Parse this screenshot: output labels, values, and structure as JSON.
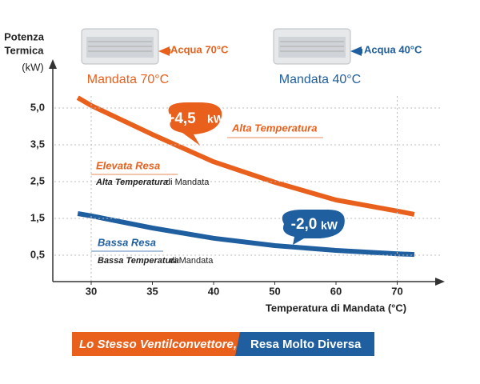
{
  "chart_data": {
    "type": "line",
    "y_label_line1": "Potenza",
    "y_label_line2": "Termica",
    "y_unit": "(kW)",
    "x_label": "Temperatura di Mandata (°C)",
    "x": [
      28.9,
      30,
      35,
      40,
      50,
      60,
      70,
      72.8
    ],
    "series": [
      {
        "name": "Mandata 70°C",
        "color": "#e8601c",
        "values": [
          5.42,
          5.1,
          3.92,
          3.04,
          2.48,
          2.0,
          1.7,
          1.61
        ]
      },
      {
        "name": "Mandata 40°C",
        "color": "#1f5fa0",
        "values": [
          1.63,
          1.57,
          1.24,
          0.96,
          0.76,
          0.63,
          0.54,
          0.52
        ]
      }
    ],
    "xlim": [
      27,
      77
    ],
    "xticks": [
      30,
      35,
      40,
      50,
      60,
      70
    ],
    "ylim": [
      -0.2,
      6.8
    ],
    "yticks": [
      {
        "value": 0.5,
        "label": "0,5"
      },
      {
        "value": 1.5,
        "label": "1,5"
      },
      {
        "value": 2.5,
        "label": "2,5"
      },
      {
        "value": 3.5,
        "label": "3,5"
      },
      {
        "value": 5.0,
        "label": "5,0"
      }
    ],
    "grid": true,
    "annotations": {
      "water_hot": "Acqua 70°C",
      "water_cold": "Acqua 40°C",
      "diff_high_value": "+4,5",
      "diff_low_value": "-2,0",
      "diff_unit": "kW",
      "high_label": "Alta Temperatura",
      "high_yield": "Elevata Resa",
      "high_desc_bold": "Alta Temperatura",
      "high_desc_rest": "di Mandata",
      "low_yield": "Bassa Resa",
      "low_desc_bold": "Bassa Temperatura",
      "low_desc_rest": "di Mandata",
      "banner_left": "Lo Stesso Ventilconvettore,",
      "banner_right": "Resa Molto Diversa"
    }
  }
}
